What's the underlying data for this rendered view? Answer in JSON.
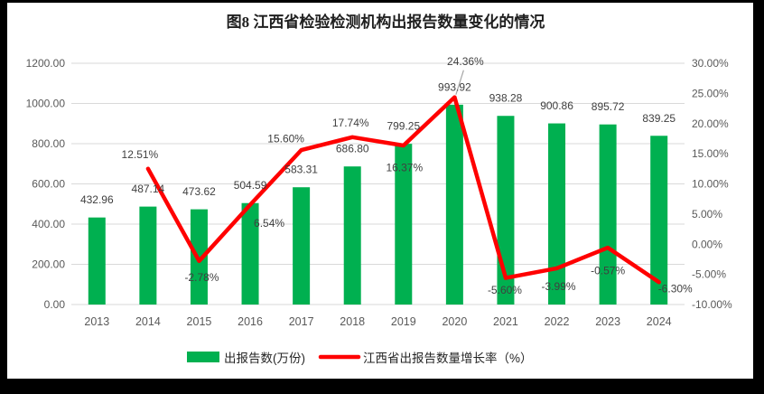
{
  "title": "图8 江西省检验检测机构出报告数量变化的情况",
  "colors": {
    "frame": "#000000",
    "panel": "#ffffff",
    "bar": "#00B050",
    "line": "#FF0000",
    "gridline": "#D9D9D9",
    "leader": "#A6A6A6"
  },
  "chart_data": {
    "type": "combo",
    "title": "图8 江西省检验检测机构出报告数量变化的情况",
    "categories": [
      "2013",
      "2014",
      "2015",
      "2016",
      "2017",
      "2018",
      "2019",
      "2020",
      "2021",
      "2022",
      "2023",
      "2024"
    ],
    "series": [
      {
        "name": "出报告数(万份)",
        "type": "bar",
        "color": "#00B050",
        "axis": "left",
        "values": [
          432.96,
          487.14,
          473.62,
          504.59,
          583.31,
          686.8,
          799.25,
          993.92,
          938.28,
          900.86,
          895.72,
          839.25
        ],
        "labels": [
          "432.96",
          "487.14",
          "473.62",
          "504.59",
          "583.31",
          "686.80",
          "799.25",
          "993.92",
          "938.28",
          "900.86",
          "895.72",
          "839.25"
        ]
      },
      {
        "name": "江西省出报告数量增长率（%）",
        "type": "line",
        "color": "#FF0000",
        "axis": "right",
        "values": [
          null,
          12.51,
          -2.78,
          6.54,
          15.6,
          17.74,
          16.37,
          24.36,
          -5.6,
          -3.99,
          -0.57,
          -6.3
        ],
        "labels": [
          null,
          "12.51%",
          "-2.78%",
          "6.54%",
          "15.60%",
          "17.74%",
          "16.37%",
          "24.36%",
          "-5.60%",
          "-3.99%",
          "-0.57%",
          "-6.30%"
        ],
        "label_offsets": [
          null,
          [
            -9,
            -16
          ],
          [
            3,
            18
          ],
          [
            21,
            20
          ],
          [
            -17,
            -13
          ],
          [
            -2,
            -16
          ],
          [
            1,
            24
          ],
          [
            12,
            -40
          ],
          [
            -1,
            13
          ],
          [
            2,
            20
          ],
          [
            0,
            25
          ],
          [
            18,
            7
          ]
        ],
        "leader_index": 7
      }
    ],
    "left_axis": {
      "min": 0,
      "max": 1200,
      "step": 200,
      "ticks": [
        "0.00",
        "200.00",
        "400.00",
        "600.00",
        "800.00",
        "1000.00",
        "1200.00"
      ]
    },
    "right_axis": {
      "min": -10,
      "max": 30,
      "step": 5,
      "ticks": [
        "-10.00%",
        "-5.00%",
        "0.00%",
        "5.00%",
        "10.00%",
        "15.00%",
        "20.00%",
        "25.00%",
        "30.00%"
      ]
    },
    "grid": true,
    "legend": {
      "position": "bottom",
      "entries": [
        {
          "swatch": "bar",
          "color": "#00B050",
          "label": "出报告数(万份)"
        },
        {
          "swatch": "line",
          "color": "#FF0000",
          "label": "江西省出报告数量增长率（%）"
        }
      ]
    }
  }
}
